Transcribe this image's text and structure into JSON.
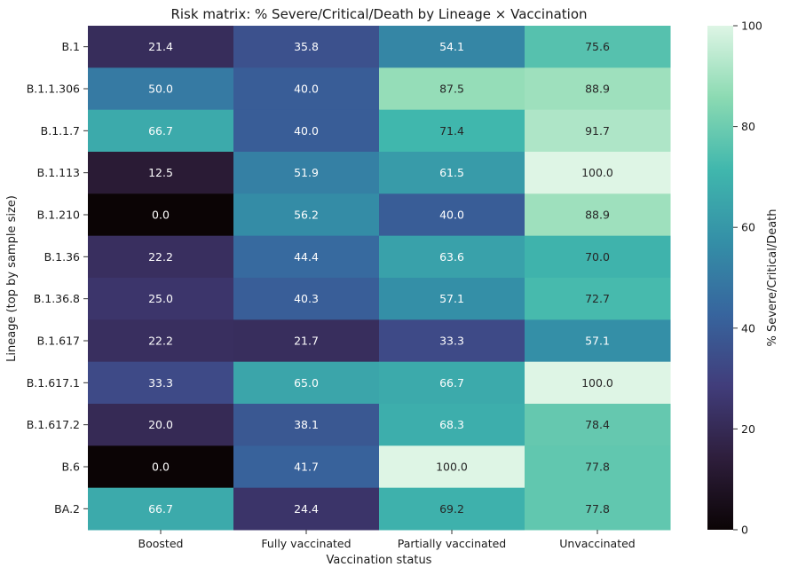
{
  "chart_data": {
    "type": "heatmap",
    "title": "Risk matrix: % Severe/Critical/Death by Lineage × Vaccination",
    "xlabel": "Vaccination status",
    "ylabel": "Lineage (top by sample size)",
    "x_categories": [
      "Boosted",
      "Fully vaccinated",
      "Partially vaccinated",
      "Unvaccinated"
    ],
    "y_categories": [
      "B.1",
      "B.1.1.306",
      "B.1.1.7",
      "B.1.113",
      "B.1.210",
      "B.1.36",
      "B.1.36.8",
      "B.1.617",
      "B.1.617.1",
      "B.1.617.2",
      "B.6",
      "BA.2"
    ],
    "values": [
      [
        21.4,
        35.8,
        54.1,
        75.6
      ],
      [
        50.0,
        40.0,
        87.5,
        88.9
      ],
      [
        66.7,
        40.0,
        71.4,
        91.7
      ],
      [
        12.5,
        51.9,
        61.5,
        100.0
      ],
      [
        0.0,
        56.2,
        40.0,
        88.9
      ],
      [
        22.2,
        44.4,
        63.6,
        70.0
      ],
      [
        25.0,
        40.3,
        57.1,
        72.7
      ],
      [
        22.2,
        21.7,
        33.3,
        57.1
      ],
      [
        33.3,
        65.0,
        66.7,
        100.0
      ],
      [
        20.0,
        38.1,
        68.3,
        78.4
      ],
      [
        0.0,
        41.7,
        100.0,
        77.8
      ],
      [
        66.7,
        24.4,
        69.2,
        77.8
      ]
    ],
    "value_format": "0.1f",
    "colorbar": {
      "label": "% Severe/Critical/Death",
      "range": [
        0,
        100
      ],
      "ticks": [
        0,
        20,
        40,
        60,
        80,
        100
      ]
    },
    "colormap": "mako",
    "colormap_stops": [
      "#0b0405",
      "#2e1e3c",
      "#413d7b",
      "#37659e",
      "#348fa7",
      "#40b7ad",
      "#8bdab2",
      "#def5e5"
    ]
  }
}
